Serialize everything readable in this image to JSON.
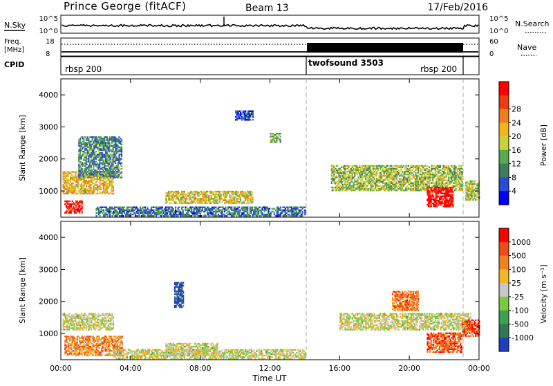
{
  "header": {
    "title": "Prince George (fitACF)",
    "beam": "Beam 13",
    "date": "17/Feb/2016"
  },
  "strips": {
    "nsky_label": "N.Sky",
    "nsky_ticks": [
      "10^5",
      "10^0"
    ],
    "nsearch_label": "N.Search",
    "nsearch_ticks": [
      "10^5",
      "10^0"
    ],
    "freq_label": "Freq.",
    "freq_unit": "[MHz]",
    "freq_ticks": [
      "18",
      "8"
    ],
    "nave_label": "Nave",
    "nave_ticks": [
      "60",
      "0"
    ],
    "cpid_label": "CPID",
    "cpid_segments": [
      {
        "label": "rbsp 200",
        "start": "00:00",
        "end": "14:00"
      },
      {
        "label": "twofsound 3503",
        "start": "14:00",
        "end": "22:50"
      },
      {
        "label": "rbsp 200",
        "start": "22:50",
        "end": "24:00"
      }
    ]
  },
  "chart_data": [
    {
      "type": "heatmap",
      "name": "power",
      "xlabel": "",
      "ylabel": "Slant Range [km]",
      "x_ticks": [
        "00:00",
        "04:00",
        "08:00",
        "12:00",
        "16:00",
        "20:00",
        "00:00"
      ],
      "xlim": [
        0,
        24
      ],
      "y_ticks": [
        "1000",
        "2000",
        "3000",
        "4000"
      ],
      "ylim": [
        180,
        4500
      ],
      "colorbar_label": "Power [dB]",
      "colorbar_ticks": [
        "4",
        "8",
        "12",
        "16",
        "20",
        "24",
        "28"
      ],
      "colorbar_colors": [
        "#0000ff",
        "#2a4bd7",
        "#3e7e5c",
        "#5aa84f",
        "#c8d23a",
        "#f3b31d",
        "#f07c1e",
        "#f03a12",
        "#ff0000"
      ],
      "echo_regions": [
        {
          "t": [
            0.1,
            3.0
          ],
          "r": [
            900,
            1600
          ],
          "level": 0.6
        },
        {
          "t": [
            0.2,
            1.2
          ],
          "r": [
            300,
            700
          ],
          "level": 0.95
        },
        {
          "t": [
            1.0,
            3.5
          ],
          "r": [
            1400,
            2700
          ],
          "level": 0.3
        },
        {
          "t": [
            6.0,
            11.0
          ],
          "r": [
            600,
            1000
          ],
          "level": 0.55
        },
        {
          "t": [
            2.0,
            14.0
          ],
          "r": [
            200,
            500
          ],
          "level": 0.25
        },
        {
          "t": [
            10.0,
            11.0
          ],
          "r": [
            3200,
            3500
          ],
          "level": 0.15
        },
        {
          "t": [
            12.0,
            12.6
          ],
          "r": [
            2500,
            2800
          ],
          "level": 0.4
        },
        {
          "t": [
            15.5,
            23.0
          ],
          "r": [
            1000,
            1800
          ],
          "level": 0.45
        },
        {
          "t": [
            21.0,
            22.5
          ],
          "r": [
            500,
            1100
          ],
          "level": 1.0
        },
        {
          "t": [
            23.2,
            24.0
          ],
          "r": [
            700,
            1300
          ],
          "level": 0.5
        }
      ]
    },
    {
      "type": "heatmap",
      "name": "velocity",
      "xlabel": "Time UT",
      "ylabel": "Slant Range [km]",
      "x_ticks": [
        "00:00",
        "04:00",
        "08:00",
        "12:00",
        "16:00",
        "20:00",
        "00:00"
      ],
      "xlim": [
        0,
        24
      ],
      "y_ticks": [
        "1000",
        "2000",
        "3000",
        "4000"
      ],
      "ylim": [
        180,
        4500
      ],
      "colorbar_label": "Velocity [m s⁻¹]",
      "colorbar_ticks": [
        "1000",
        "500",
        "100",
        "25",
        "-25",
        "-100",
        "-500",
        "-1000"
      ],
      "colorbar_colors": [
        "#1f3fbf",
        "#2f7a55",
        "#3fa050",
        "#78cc3c",
        "#c8c8c8",
        "#f5b526",
        "#f08020",
        "#f04a18",
        "#ff0000"
      ],
      "echo_regions": [
        {
          "t": [
            0.1,
            3.0
          ],
          "r": [
            1100,
            1600
          ],
          "level": 0.5
        },
        {
          "t": [
            0.2,
            3.5
          ],
          "r": [
            300,
            900
          ],
          "level": 0.7
        },
        {
          "t": [
            6.0,
            9.0
          ],
          "r": [
            300,
            700
          ],
          "level": 0.5
        },
        {
          "t": [
            6.5,
            7.0
          ],
          "r": [
            1800,
            2600
          ],
          "level": 0.05
        },
        {
          "t": [
            3.0,
            14.0
          ],
          "r": [
            200,
            500
          ],
          "level": 0.5
        },
        {
          "t": [
            16.0,
            23.5
          ],
          "r": [
            1100,
            1600
          ],
          "level": 0.5
        },
        {
          "t": [
            19.0,
            20.5
          ],
          "r": [
            1700,
            2300
          ],
          "level": 0.75
        },
        {
          "t": [
            21.0,
            23.0
          ],
          "r": [
            400,
            1000
          ],
          "level": 0.8
        },
        {
          "t": [
            23.0,
            24.0
          ],
          "r": [
            900,
            1400
          ],
          "level": 0.85
        }
      ]
    }
  ]
}
